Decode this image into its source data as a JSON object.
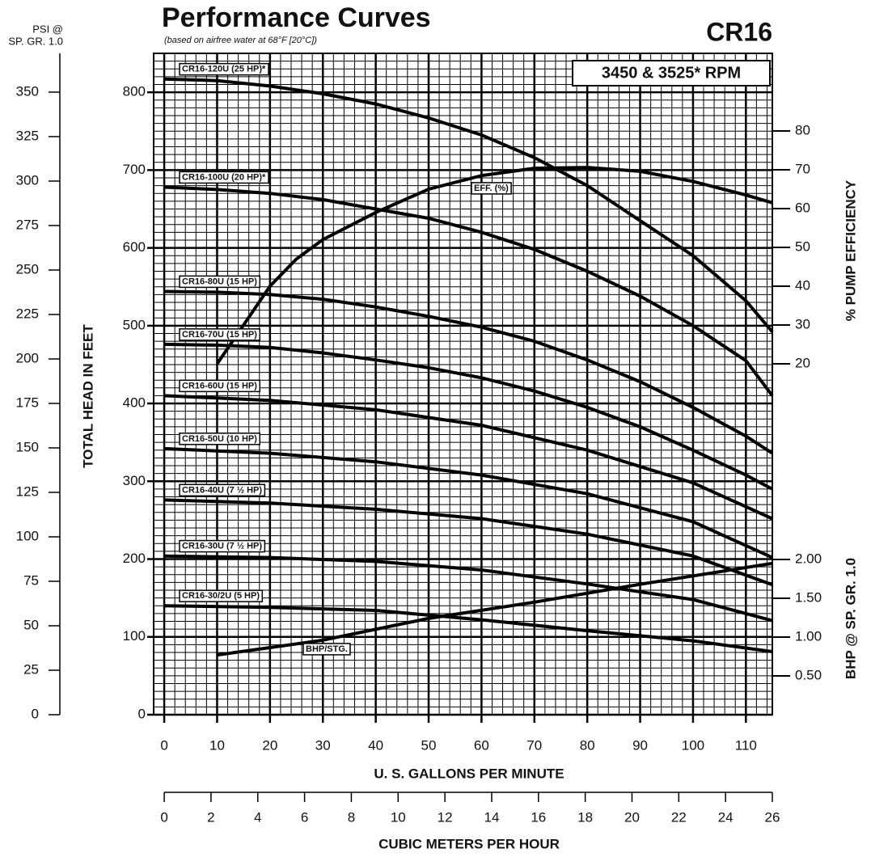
{
  "chart_data": {
    "type": "line",
    "title": "Performance Curves",
    "subtitle": "(based on airfree water at 68°F [20°C])",
    "model": "CR16",
    "speed": "3450 & 3525* RPM",
    "x_label": "U. S. GALLONS PER MINUTE",
    "y_label": "TOTAL HEAD IN FEET",
    "y2_label": "% PUMP EFFICIENCY",
    "y3_label": "BHP @ SP. GR. 1.0",
    "psi_label": [
      "PSI @",
      "SP. GR. 1.0"
    ],
    "m3_label": "CUBIC METERS PER HOUR",
    "xlim": [
      -2,
      115
    ],
    "xticks": [
      0,
      10,
      20,
      30,
      40,
      50,
      60,
      70,
      80,
      90,
      100,
      110
    ],
    "ylim": [
      0,
      850
    ],
    "yticks": [
      0,
      100,
      200,
      300,
      400,
      500,
      600,
      700,
      800
    ],
    "y2lim": [
      -70.4,
      100
    ],
    "y2ticks": [
      20,
      30,
      40,
      50,
      60,
      70,
      80
    ],
    "y3lim": [
      0,
      8.52
    ],
    "y3ticks": [
      {
        "value": 0.5,
        "label": "0.50"
      },
      {
        "value": 1,
        "label": "1.00"
      },
      {
        "value": 1.5,
        "label": "1.50"
      },
      {
        "value": 2,
        "label": "2.00"
      }
    ],
    "psi_lim": [
      0,
      371.8
    ],
    "psi_ticks": [
      0,
      25,
      50,
      75,
      100,
      125,
      150,
      175,
      200,
      225,
      250,
      275,
      300,
      325,
      350
    ],
    "m3_lim": [
      0,
      26
    ],
    "m3_ticks": [
      0,
      2,
      4,
      6,
      8,
      10,
      12,
      14,
      16,
      18,
      20,
      22,
      24,
      26
    ],
    "grid": true,
    "minor_grid": {
      "x": 2,
      "y": 10
    },
    "series": [
      {
        "name": "CR16-120U (25 HP)*",
        "color": "#000000",
        "axis": "y",
        "x": [
          0,
          10,
          20,
          30,
          40,
          50,
          60,
          70,
          80,
          90,
          100,
          110,
          115
        ],
        "values": [
          817,
          815,
          808,
          798,
          785,
          767,
          745,
          716,
          680,
          635,
          590,
          532,
          492
        ]
      },
      {
        "name": "CR16-100U (20 HP)*",
        "color": "#000000",
        "axis": "y",
        "x": [
          0,
          10,
          20,
          30,
          40,
          50,
          60,
          70,
          80,
          90,
          100,
          110,
          115
        ],
        "values": [
          678,
          675,
          670,
          662,
          650,
          638,
          620,
          598,
          570,
          538,
          500,
          455,
          410
        ]
      },
      {
        "name": "CR16-80U (15 HP)",
        "color": "#000000",
        "axis": "y",
        "x": [
          0,
          10,
          20,
          30,
          40,
          50,
          60,
          70,
          80,
          90,
          100,
          110,
          115
        ],
        "values": [
          544,
          543,
          540,
          534,
          524,
          512,
          498,
          480,
          456,
          428,
          395,
          358,
          336
        ]
      },
      {
        "name": "CR16-70U (15 HP)",
        "color": "#000000",
        "axis": "y",
        "x": [
          0,
          10,
          20,
          30,
          40,
          50,
          60,
          70,
          80,
          90,
          100,
          110,
          115
        ],
        "values": [
          476,
          475,
          472,
          465,
          456,
          446,
          433,
          416,
          395,
          370,
          340,
          308,
          290
        ]
      },
      {
        "name": "CR16-60U (15 HP)",
        "color": "#000000",
        "axis": "y",
        "x": [
          0,
          20,
          40,
          60,
          80,
          100,
          115
        ],
        "values": [
          410,
          404,
          392,
          372,
          340,
          298,
          252
        ]
      },
      {
        "name": "CR16-50U (10 HP)",
        "color": "#000000",
        "axis": "y",
        "x": [
          0,
          20,
          40,
          60,
          80,
          100,
          115
        ],
        "values": [
          342,
          336,
          325,
          308,
          284,
          248,
          202
        ]
      },
      {
        "name": "CR16-40U (7 ½ HP)",
        "color": "#000000",
        "axis": "y",
        "x": [
          0,
          20,
          40,
          60,
          80,
          100,
          115
        ],
        "values": [
          276,
          272,
          264,
          252,
          232,
          204,
          167
        ]
      },
      {
        "name": "CR16-30U (7 ½ HP)",
        "color": "#000000",
        "axis": "y",
        "x": [
          0,
          20,
          40,
          60,
          80,
          100,
          115
        ],
        "values": [
          204,
          202,
          197,
          186,
          168,
          148,
          121
        ]
      },
      {
        "name": "CR16-30/2U (5 HP)",
        "color": "#000000",
        "axis": "y",
        "x": [
          0,
          20,
          40,
          60,
          80,
          100,
          115
        ],
        "values": [
          140,
          138,
          134,
          122,
          108,
          95,
          81
        ]
      },
      {
        "name": "EFF. (%)",
        "color": "#000000",
        "axis": "y2",
        "x": [
          10,
          15,
          20,
          25,
          30,
          40,
          50,
          60,
          70,
          80,
          90,
          100,
          110,
          115
        ],
        "values": [
          20,
          30,
          40,
          47,
          52,
          59,
          65,
          68.5,
          70.4,
          70.6,
          69.6,
          67,
          63.5,
          61.5
        ]
      },
      {
        "name": "BHP/STG.",
        "color": "#000000",
        "axis": "y3",
        "x": [
          10,
          30,
          50,
          70,
          90,
          115
        ],
        "values": [
          0.77,
          0.96,
          1.24,
          1.45,
          1.68,
          1.95
        ]
      }
    ]
  }
}
